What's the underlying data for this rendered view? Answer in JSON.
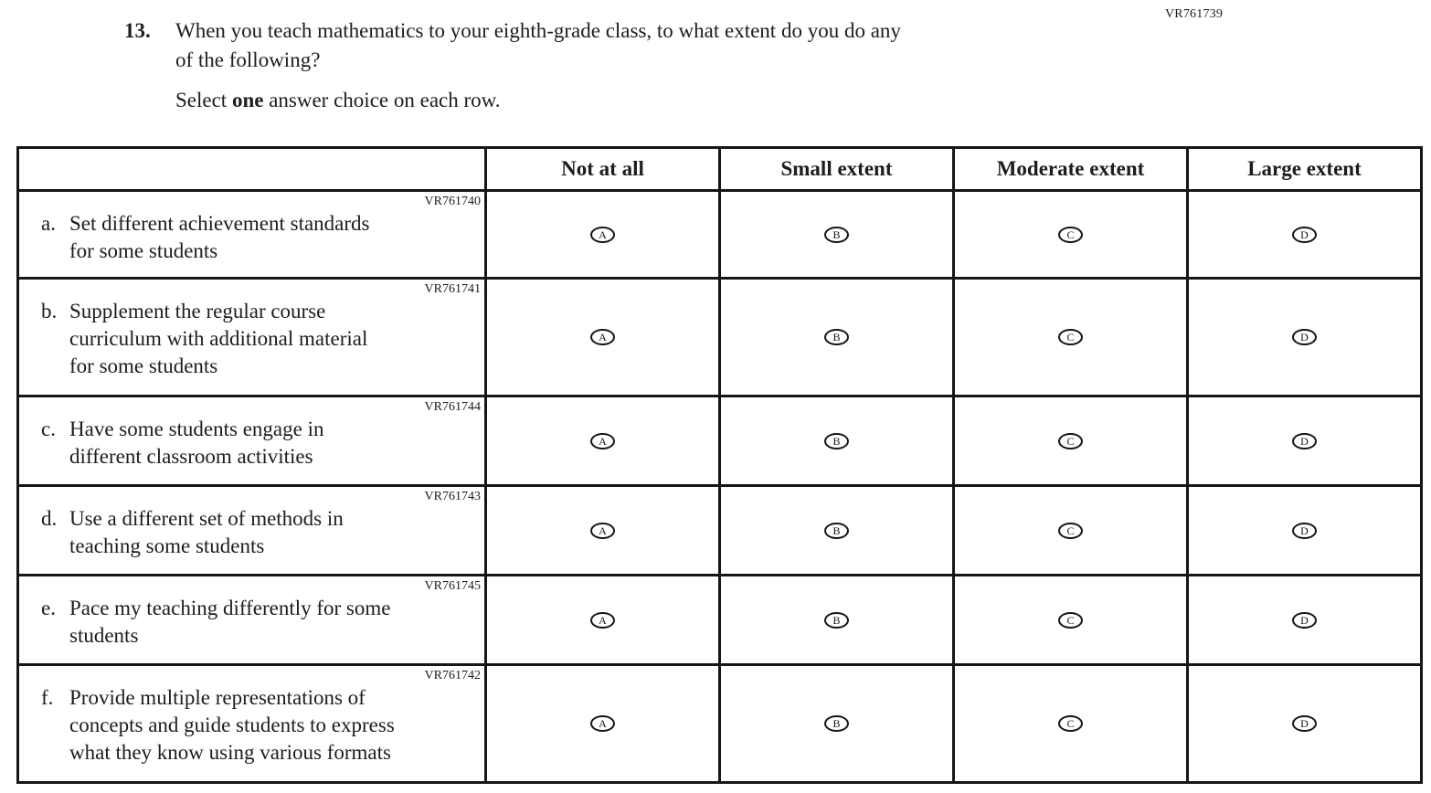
{
  "page_code": "VR761739",
  "question": {
    "number": "13.",
    "lines": [
      "When you teach mathematics to your eighth-grade class, to what extent do you do any",
      "of the following?"
    ],
    "instruction": {
      "pre": "Select ",
      "bold": "one",
      "post": " answer choice on each row."
    }
  },
  "table": {
    "column_headers": [
      "Not at all",
      "Small extent",
      "Moderate extent",
      "Large extent"
    ],
    "option_letters": [
      "A",
      "B",
      "C",
      "D"
    ],
    "rows": [
      {
        "code": "VR761740",
        "letter": "a.",
        "lines": [
          "Set different achievement standards",
          "for some students"
        ]
      },
      {
        "code": "VR761741",
        "letter": "b.",
        "lines": [
          "Supplement the regular course",
          "curriculum with additional material",
          "for some students"
        ]
      },
      {
        "code": "VR761744",
        "letter": "c.",
        "lines": [
          "Have some students engage in",
          "different classroom activities"
        ]
      },
      {
        "code": "VR761743",
        "letter": "d.",
        "lines": [
          "Use a different set of methods in",
          "teaching some students"
        ]
      },
      {
        "code": "VR761745",
        "letter": "e.",
        "lines": [
          "Pace my teaching differently for some",
          "students"
        ]
      },
      {
        "code": "VR761742",
        "letter": "f.",
        "lines": [
          "Provide multiple representations of",
          "concepts and guide students to express",
          "what they know using various formats"
        ]
      }
    ]
  }
}
